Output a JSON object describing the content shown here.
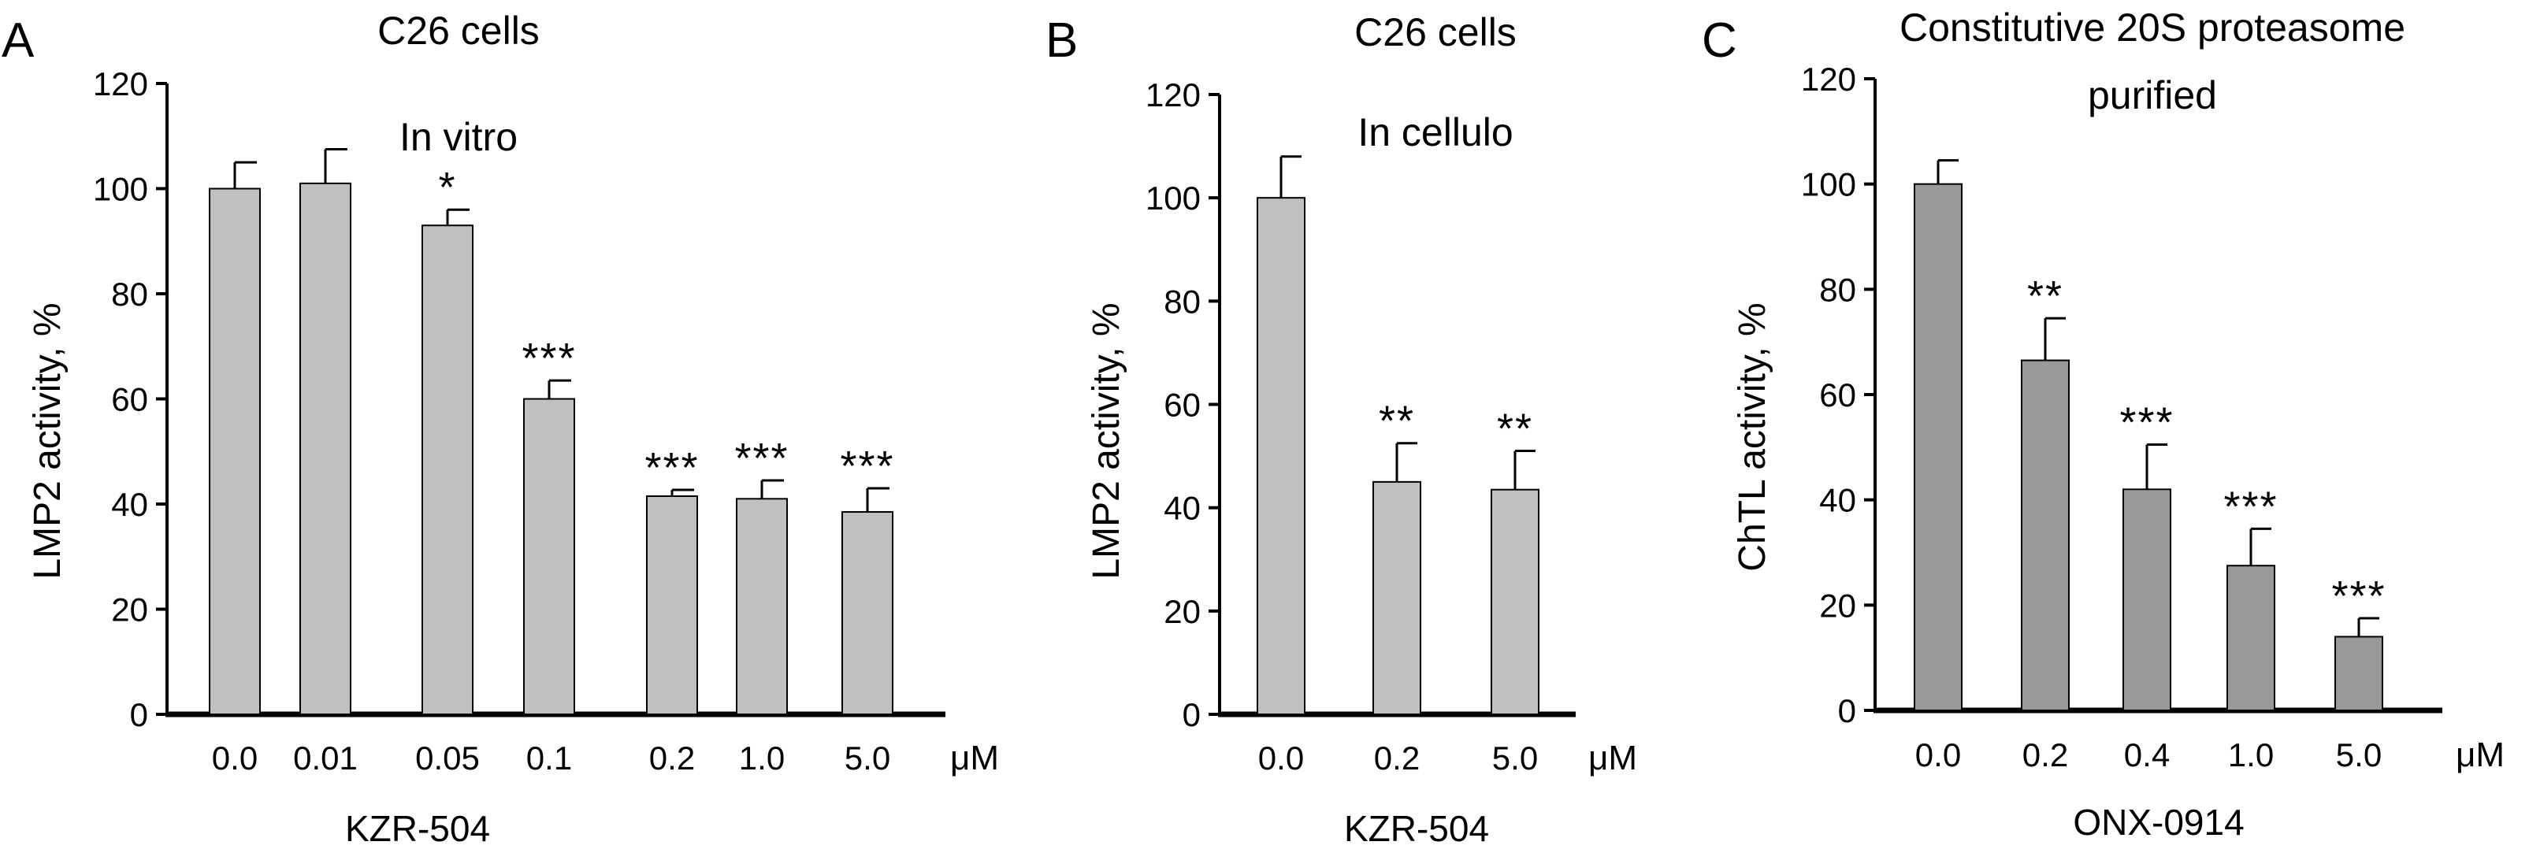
{
  "colors": {
    "bar_light": "#c0c0c0",
    "bar_dark": "#999999",
    "stroke": "#000000"
  },
  "chart_data": [
    {
      "type": "bar",
      "panel": "A",
      "title_lines": [
        "C26 cells",
        "In vitro"
      ],
      "categories": [
        "0.0",
        "0.01",
        "0.05",
        "0.1",
        "0.2",
        "1.0",
        "5.0"
      ],
      "unit": "μM",
      "values": [
        100,
        101,
        93,
        60,
        41.5,
        41,
        38.5
      ],
      "errors": [
        5,
        6.5,
        3,
        3.5,
        1.2,
        3.5,
        4.5
      ],
      "significance": [
        "",
        "",
        "*",
        "***",
        "***",
        "***",
        "***"
      ],
      "xlabel": "KZR-504",
      "ylabel": "LMP2 activity, %",
      "ylim": [
        0,
        120
      ],
      "yticks": [
        0,
        20,
        40,
        60,
        80,
        100,
        120
      ],
      "bar_color": "light"
    },
    {
      "type": "bar",
      "panel": "B",
      "title_lines": [
        "C26 cells",
        "In cellulo"
      ],
      "categories": [
        "0.0",
        "0.2",
        "5.0"
      ],
      "unit": "μM",
      "values": [
        100,
        45,
        43.5
      ],
      "errors": [
        8,
        7.5,
        7.5
      ],
      "significance": [
        "",
        "**",
        "**"
      ],
      "xlabel": "KZR-504",
      "ylabel": "LMP2 activity, %",
      "ylim": [
        0,
        120
      ],
      "yticks": [
        0,
        20,
        40,
        60,
        80,
        100,
        120
      ],
      "bar_color": "light"
    },
    {
      "type": "bar",
      "panel": "C",
      "title_lines": [
        "Constitutive 20S proteasome",
        "purified"
      ],
      "categories": [
        "0.0",
        "0.2",
        "0.4",
        "1.0",
        "5.0"
      ],
      "unit": "μM",
      "values": [
        100,
        66.5,
        42,
        27.5,
        14
      ],
      "errors": [
        4.5,
        8,
        8.5,
        7,
        3.5
      ],
      "significance": [
        "",
        "**",
        "***",
        "***",
        "***"
      ],
      "xlabel": "ONX-0914",
      "ylabel": "ChTL activity, %",
      "ylim": [
        0,
        120
      ],
      "yticks": [
        0,
        20,
        40,
        60,
        80,
        100,
        120
      ],
      "bar_color": "dark"
    }
  ]
}
